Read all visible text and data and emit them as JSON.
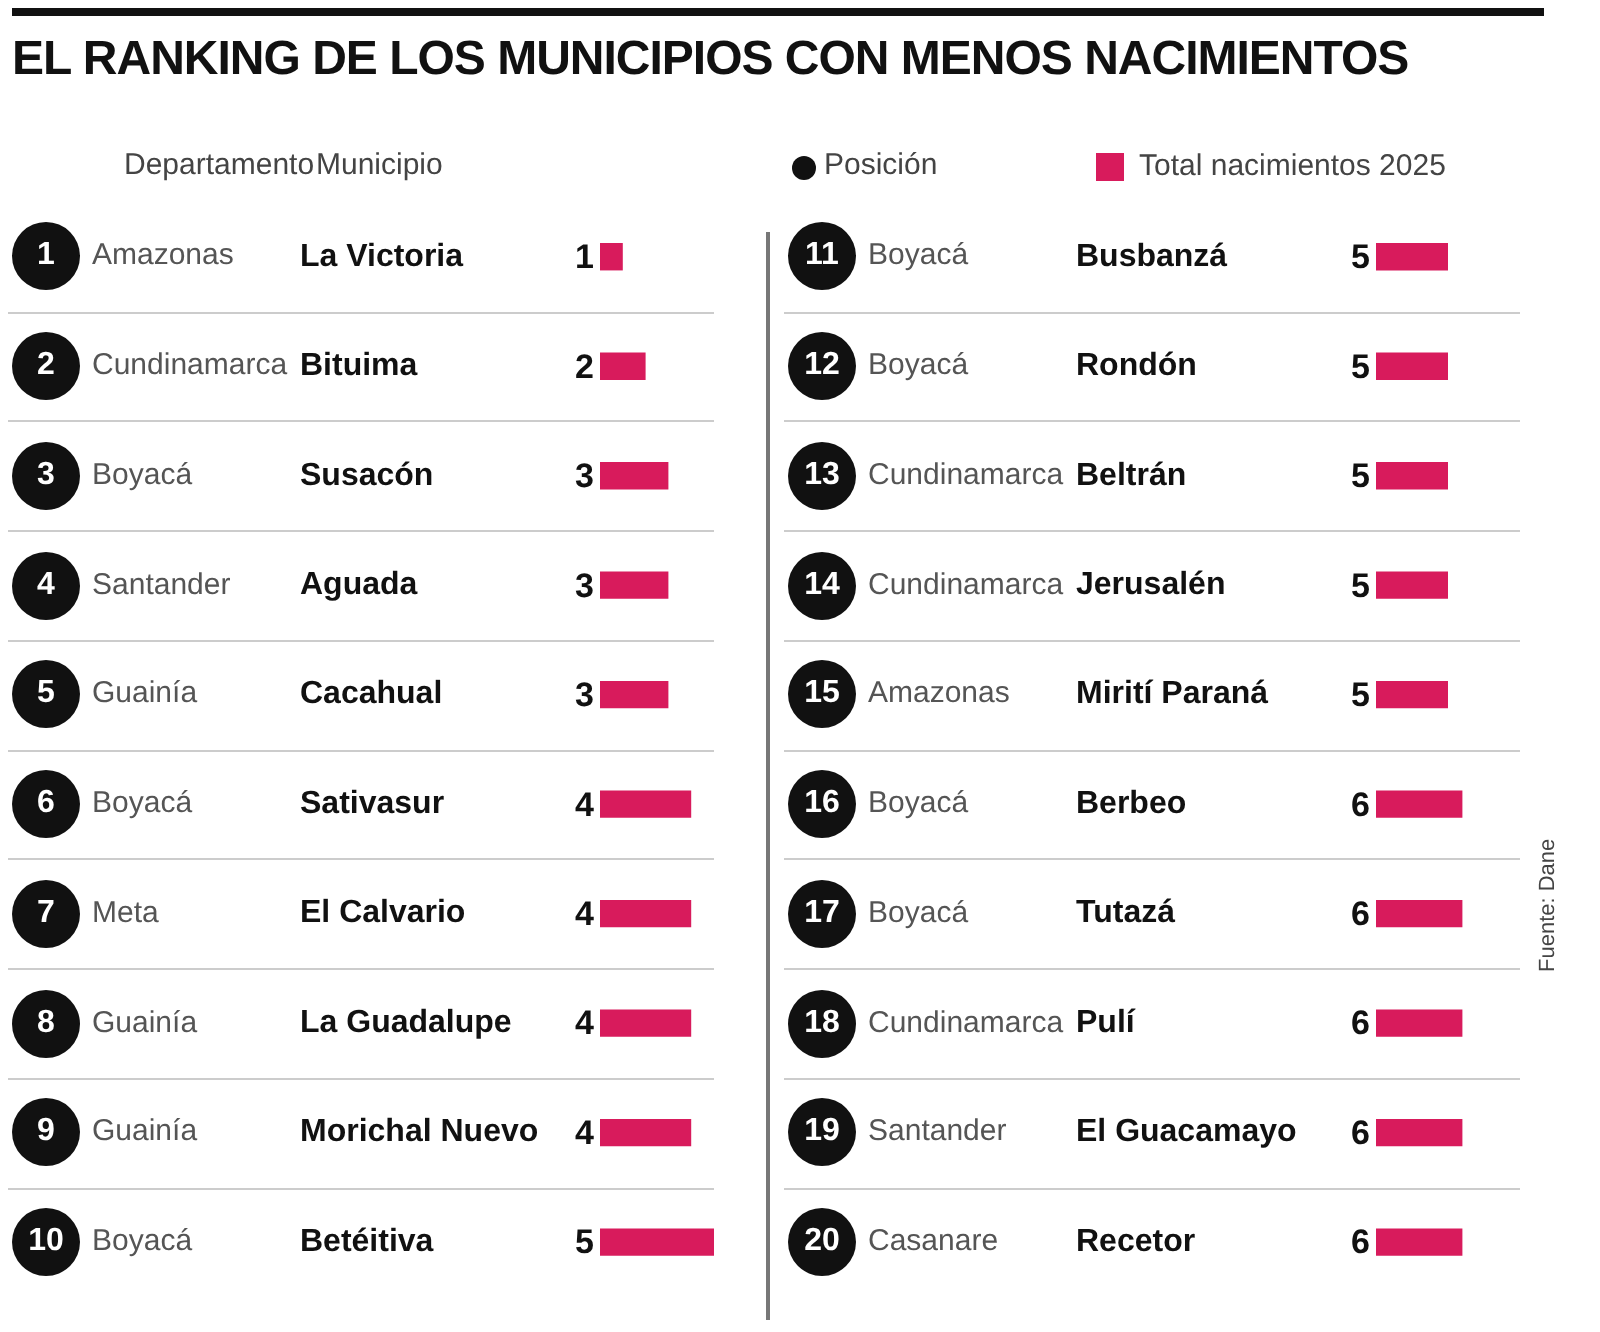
{
  "chart_data": [
    {
      "type": "bar",
      "orientation": "horizontal",
      "title": "EL RANKING DE LOS MUNICIPIOS CON MENOS NACIMIENTOS",
      "categories": [
        "La Victoria",
        "Bituima",
        "Susacón",
        "Aguada",
        "Cacahual",
        "Sativasur",
        "El Calvario",
        "La Guadalupe",
        "Morichal Nuevo",
        "Betéitiva"
      ],
      "series": [
        {
          "color": "#d81b5c",
          "values": [
            1,
            2,
            3,
            3,
            3,
            4,
            4,
            4,
            4,
            5
          ]
        }
      ],
      "data_labels": true,
      "tick_labels": "y",
      "grid": false,
      "legend": false,
      "annotations": [
        "Departamento",
        "Municipio",
        "1",
        "Amazonas",
        "2",
        "Cundinamarca",
        "3",
        "Boyacá",
        "4",
        "Santander",
        "5",
        "Guainía",
        "6",
        "Boyacá",
        "7",
        "Meta",
        "8",
        "Guainía",
        "9",
        "Guainía",
        "10",
        "Boyacá"
      ]
    },
    {
      "type": "bar",
      "orientation": "horizontal",
      "categories": [
        "Busbanzá",
        "Rondón",
        "Beltrán",
        "Jerusalén",
        "Mirití Paraná",
        "Berbeo",
        "Tutazá",
        "Pulí",
        "El Guacamayo",
        "Recetor"
      ],
      "series": [
        {
          "name": "Total nacimientos 2025",
          "color": "#d81b5c",
          "values": [
            5,
            5,
            5,
            5,
            5,
            6,
            6,
            6,
            6,
            6
          ]
        }
      ],
      "data_labels": true,
      "tick_labels": "y",
      "grid": false,
      "legend": "top left",
      "annotations": [
        "Posición",
        "11",
        "Boyacá",
        "12",
        "Boyacá",
        "13",
        "Cundinamarca",
        "14",
        "Cundinamarca",
        "15",
        "Amazonas",
        "16",
        "Boyacá",
        "17",
        "Boyacá",
        "18",
        "Cundinamarca",
        "19",
        "Santander",
        "20",
        "Casanare",
        "Fuente: Dane"
      ]
    }
  ]
}
